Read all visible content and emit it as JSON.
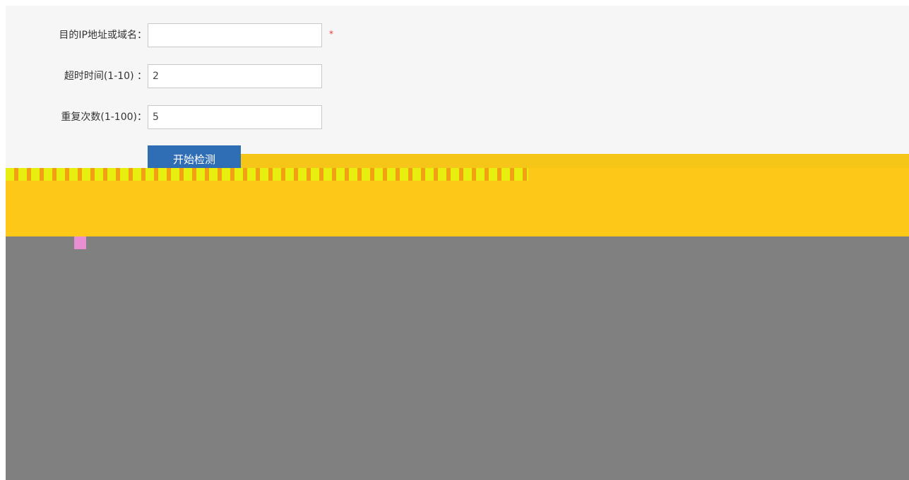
{
  "form": {
    "fields": [
      {
        "label": "目的IP地址或域名：",
        "value": "",
        "required_mark": "*"
      },
      {
        "label": "超时时间(1-10) ：",
        "value": "2"
      },
      {
        "label": "重复次数(1-100)：",
        "value": "5"
      }
    ],
    "button": "开始检测"
  }
}
